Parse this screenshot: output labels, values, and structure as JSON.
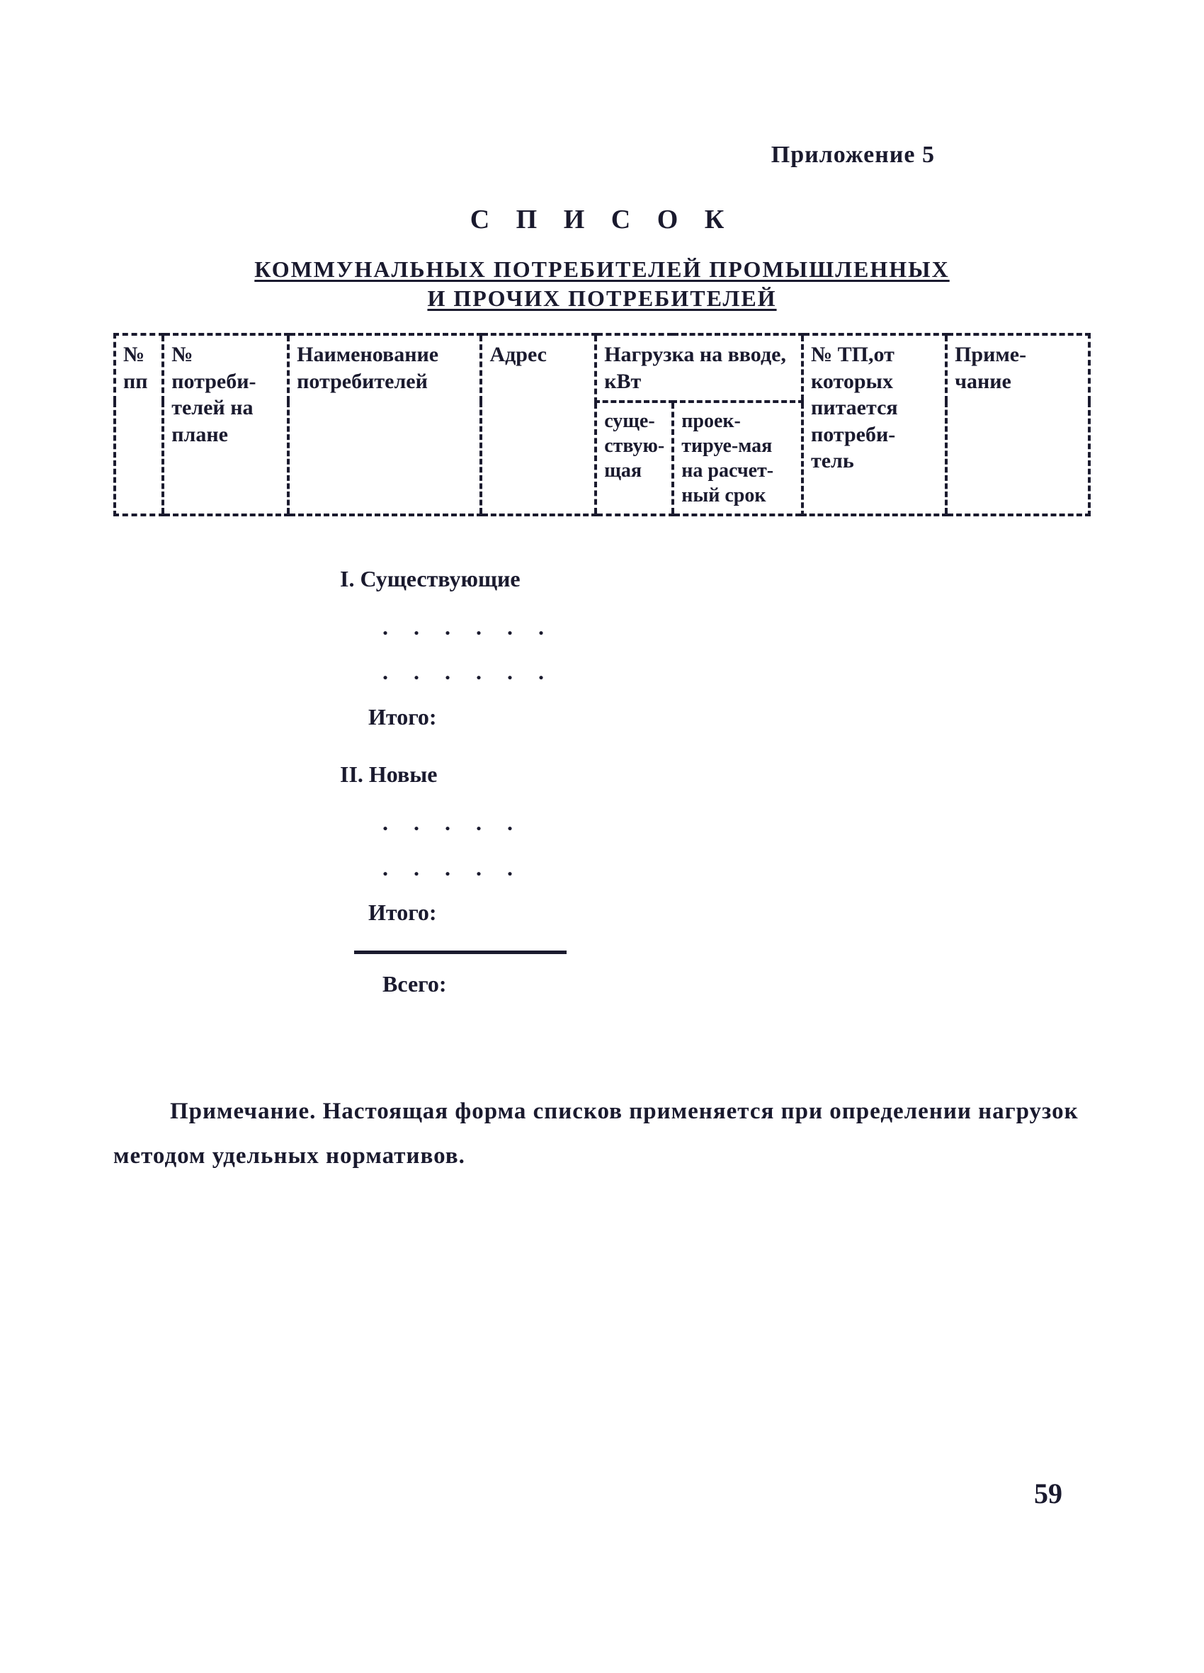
{
  "appendix": "Приложение 5",
  "title": "С П И С О К",
  "subtitle1": "КОММУНАЛЬНЫХ ПОТРЕБИТЕЛЕЙ ПРОМЫШЛЕННЫХ",
  "subtitle2": "И ПРОЧИХ ПОТРЕБИТЕЛЕЙ",
  "headers": {
    "col1": "№ пп",
    "col2": "№ потреби-телей на плане",
    "col3": "Наименование потребителей",
    "col4": "Адрес",
    "col5": "Нагрузка на вводе, кВт",
    "col5a": "суще-ствую-щая",
    "col5b": "проек-тируе-мая на расчет-ный срок",
    "col6": "№ ТП,от которых питается потреби-тель",
    "col7": "Приме-чание"
  },
  "sections": {
    "s1": "I. Существующие",
    "s2": "II. Новые",
    "dots": ". . . . . .",
    "dots2": ". . . . .",
    "itogo": "Итого:",
    "vsego": "Всего:"
  },
  "note": "Примечание. Настоящая форма списков применяется при определении нагрузок методом удельных нормативов.",
  "pageNumber": "59"
}
